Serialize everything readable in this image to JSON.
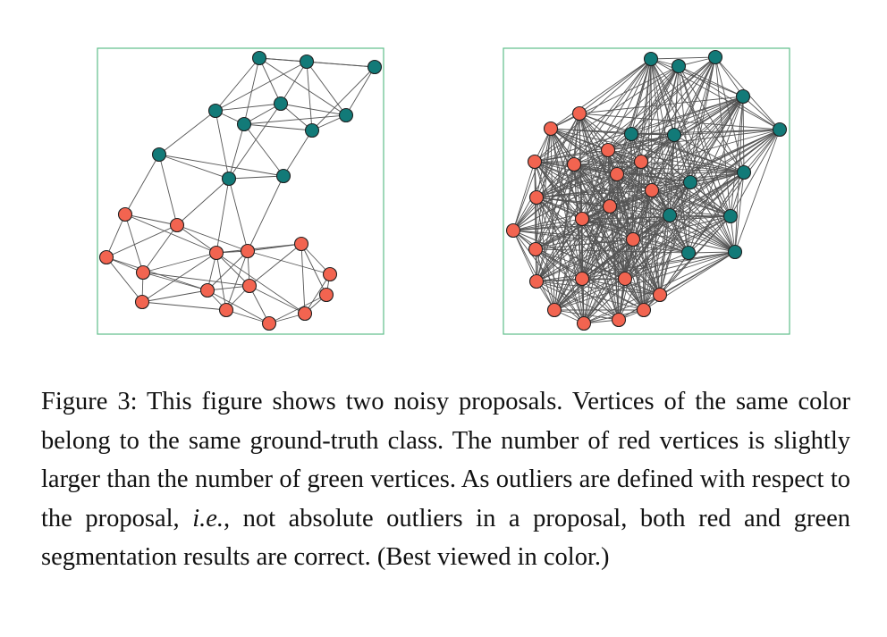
{
  "figure": {
    "colors": {
      "red": "#f26450",
      "green": "#127a78",
      "frame": "#5fbf8a",
      "edge": "#555555"
    },
    "panels": [
      {
        "name": "panel-left-sparse-proposal",
        "vertex_colors": [
          "green",
          "red"
        ]
      },
      {
        "name": "panel-right-dense-proposal",
        "vertex_colors": [
          "green",
          "red"
        ]
      }
    ]
  },
  "caption": {
    "label": "Figure 3:",
    "text_before_ie": "This figure shows two noisy proposals. Vertices of the same color belong to the same ground-truth class. The number of red vertices is slightly larger than the number of green vertices. As outliers are defined with respect to the proposal,",
    "ie": "i.e.",
    "text_after_ie": ", not absolute outliers in a proposal, both red and green segmentation results are correct. (Best viewed in color.)"
  }
}
